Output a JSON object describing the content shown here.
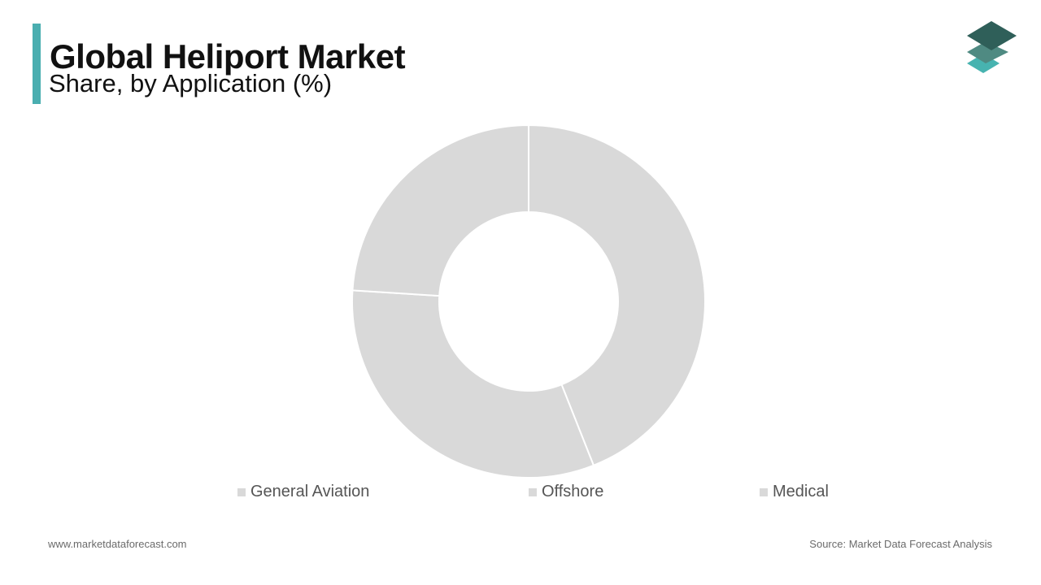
{
  "header": {
    "title": "Global Heliport Market",
    "subtitle": "Share, by Application (%)"
  },
  "colors": {
    "accent": "#4aaeb0",
    "slice": "#d9d9d9",
    "logo_top": "#2f5f59",
    "logo_mid": "#4f8a82",
    "logo_bottom": "#47b3b0"
  },
  "chart_data": {
    "type": "pie",
    "categories": [
      "General Aviation",
      "Offshore",
      "Medical"
    ],
    "values": [
      44,
      32,
      24
    ],
    "legend": "bottom"
  },
  "footer": {
    "website": "www.marketdataforecast.com",
    "source": "Source: Market Data Forecast Analysis"
  }
}
